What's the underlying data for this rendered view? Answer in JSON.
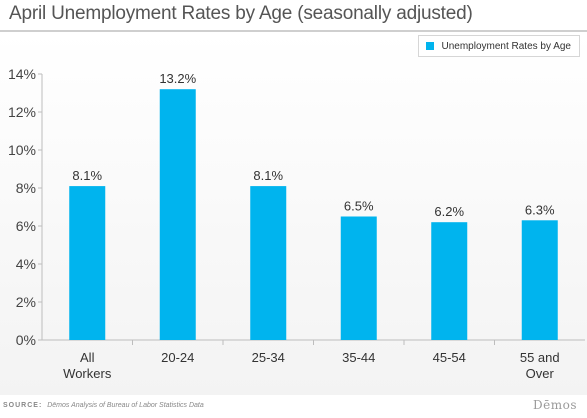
{
  "chart_data": {
    "type": "bar",
    "title": "April Unemployment Rates by Age (seasonally adjusted)",
    "categories": [
      [
        "All",
        "Workers"
      ],
      [
        "20-24"
      ],
      [
        "25-34"
      ],
      [
        "35-44"
      ],
      [
        "45-54"
      ],
      [
        "55 and",
        "Over"
      ]
    ],
    "series": [
      {
        "name": "Unemployment Rates by Age",
        "values": [
          8.1,
          13.2,
          8.1,
          6.5,
          6.2,
          6.3
        ],
        "labels": [
          "8.1%",
          "13.2%",
          "8.1%",
          "6.5%",
          "6.2%",
          "6.3%"
        ],
        "color": "#00b4ee"
      }
    ],
    "ylim": [
      0,
      14
    ],
    "yticks": [
      "0%",
      "2%",
      "4%",
      "6%",
      "8%",
      "10%",
      "12%",
      "14%"
    ],
    "ytick_values": [
      0,
      2,
      4,
      6,
      8,
      10,
      12,
      14
    ],
    "grid": false,
    "legend": "top-right"
  },
  "source": {
    "label": "SOURCE:",
    "text": "Dēmos Analysis of Bureau of Labor Statistics Data"
  },
  "brand": "Dēmos"
}
